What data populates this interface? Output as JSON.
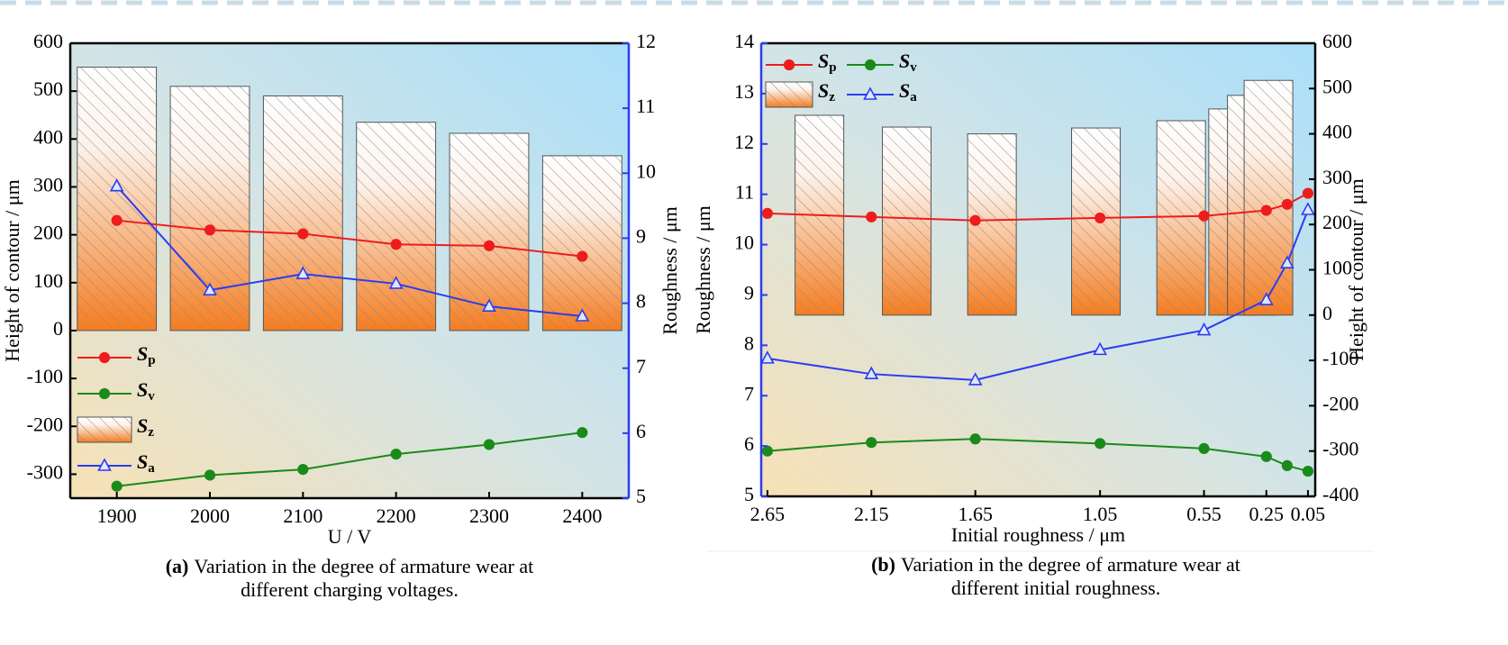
{
  "chart_data": [
    {
      "type": "combo",
      "categories": [
        1900,
        2000,
        2100,
        2200,
        2300,
        2400
      ],
      "xlabel": "U / V",
      "ylabel": "Height of contour / μm",
      "y2label": "Roughness / μm",
      "ylim": [
        -350,
        600
      ],
      "yticks": [
        -300,
        -200,
        -100,
        0,
        100,
        200,
        300,
        400,
        500,
        600
      ],
      "y2lim": [
        5,
        12
      ],
      "y2ticks": [
        5,
        6,
        7,
        8,
        9,
        10,
        11,
        12
      ],
      "ycolor": "#000000",
      "y2color": "#2b3cf0",
      "legend": "lower left",
      "series": [
        {
          "name": "Sp",
          "type": "line",
          "marker": "circle",
          "color": "#ee1c1c",
          "values": [
            230,
            210,
            202,
            180,
            177,
            155
          ]
        },
        {
          "name": "Sv",
          "type": "line",
          "marker": "circle",
          "color": "#1a8a1a",
          "values": [
            -325,
            -302,
            -290,
            -258,
            -238,
            -213
          ]
        },
        {
          "name": "Sz",
          "type": "bar",
          "color": "#f57c1f",
          "values": [
            550,
            510,
            490,
            435,
            412,
            365
          ]
        },
        {
          "name": "Sa",
          "type": "line",
          "marker": "triangle",
          "color": "#2b3cf0",
          "axis": "y2",
          "values": [
            9.8,
            8.2,
            8.45,
            8.3,
            7.95,
            7.8
          ]
        }
      ],
      "caption": {
        "label": "(a)",
        "lines": [
          "Variation in  the degree of armature wear at",
          "different charging voltages."
        ]
      }
    },
    {
      "type": "combo",
      "x": [
        2.65,
        2.15,
        1.65,
        1.05,
        0.55,
        0.25,
        0.15,
        0.05
      ],
      "xlim": [
        2.68,
        0.015
      ],
      "xticks": [
        2.65,
        2.15,
        1.65,
        1.05,
        0.55,
        0.25,
        0.05
      ],
      "xlabel": "Initial roughness / μm",
      "ylabel": "Roughness / μm",
      "y2label": "Height of contour / μm",
      "ylim": [
        5,
        14
      ],
      "yticks": [
        5,
        6,
        7,
        8,
        9,
        10,
        11,
        12,
        13,
        14
      ],
      "y2lim": [
        -400,
        600
      ],
      "y2ticks": [
        -400,
        -300,
        -200,
        -100,
        0,
        100,
        200,
        300,
        400,
        500,
        600
      ],
      "ycolor": "#2b3cf0",
      "y2color": "#000000",
      "legend": "upper left",
      "series": [
        {
          "name": "Sp",
          "type": "line",
          "marker": "circle",
          "color": "#ee1c1c",
          "values": [
            10.62,
            10.55,
            10.48,
            10.53,
            10.57,
            10.68,
            10.8,
            11.02
          ]
        },
        {
          "name": "Sv",
          "type": "line",
          "marker": "circle",
          "color": "#1a8a1a",
          "values": [
            5.9,
            6.07,
            6.14,
            6.05,
            5.95,
            5.79,
            5.61,
            5.5
          ]
        },
        {
          "name": "Sz",
          "type": "bar",
          "color": "#f57c1f",
          "axis": "y2",
          "x": [
            2.4,
            1.98,
            1.57,
            1.07,
            0.66,
            0.41,
            0.32,
            0.24
          ],
          "values": [
            441,
            415,
            400,
            413,
            429,
            455,
            485,
            518
          ]
        },
        {
          "name": "Sa",
          "type": "line",
          "marker": "triangle",
          "color": "#2b3cf0",
          "values": [
            7.74,
            7.43,
            7.31,
            7.91,
            8.3,
            8.9,
            9.63,
            10.69
          ]
        }
      ],
      "caption": {
        "label": "(b)",
        "lines": [
          "Variation in  the degree of armature wear at",
          "different initial roughness."
        ]
      }
    }
  ]
}
